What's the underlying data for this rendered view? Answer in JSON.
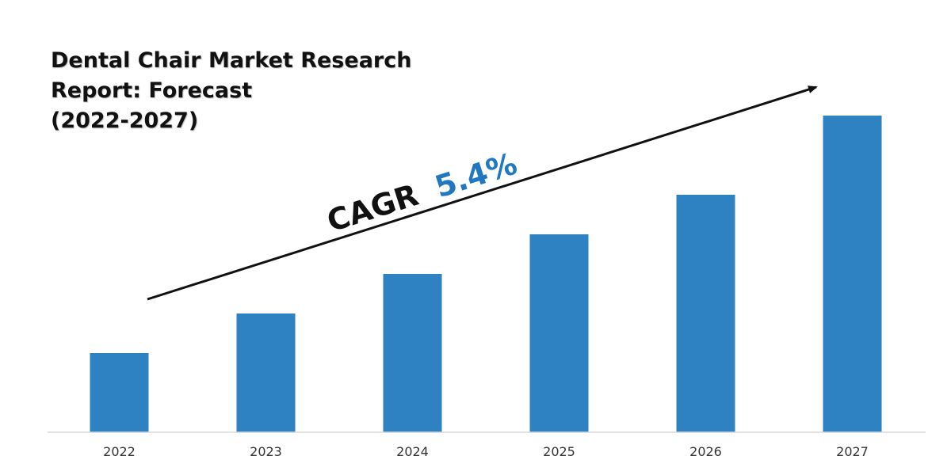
{
  "chart_data": {
    "type": "bar",
    "title": "Dental Chair Market Research Report: Forecast (2022-2027)",
    "title_lines": [
      "Dental Chair Market Research",
      "Report: Forecast",
      "(2022-2027)"
    ],
    "categories": [
      "2022",
      "2023",
      "2024",
      "2025",
      "2026",
      "2027"
    ],
    "values": [
      100,
      150,
      200,
      250,
      300,
      400
    ],
    "ylim": [
      0,
      420
    ],
    "xlabel": "",
    "ylabel": "",
    "grid": false,
    "legend": "none",
    "annotation": {
      "prefix": "CAGR",
      "value": "5.4%"
    }
  },
  "colors": {
    "bar": "#2e82c2",
    "axis": "#d9d9d9",
    "arrow": "#111111",
    "cagr_prefix": "#111111",
    "cagr_value": "#1f78c1"
  }
}
